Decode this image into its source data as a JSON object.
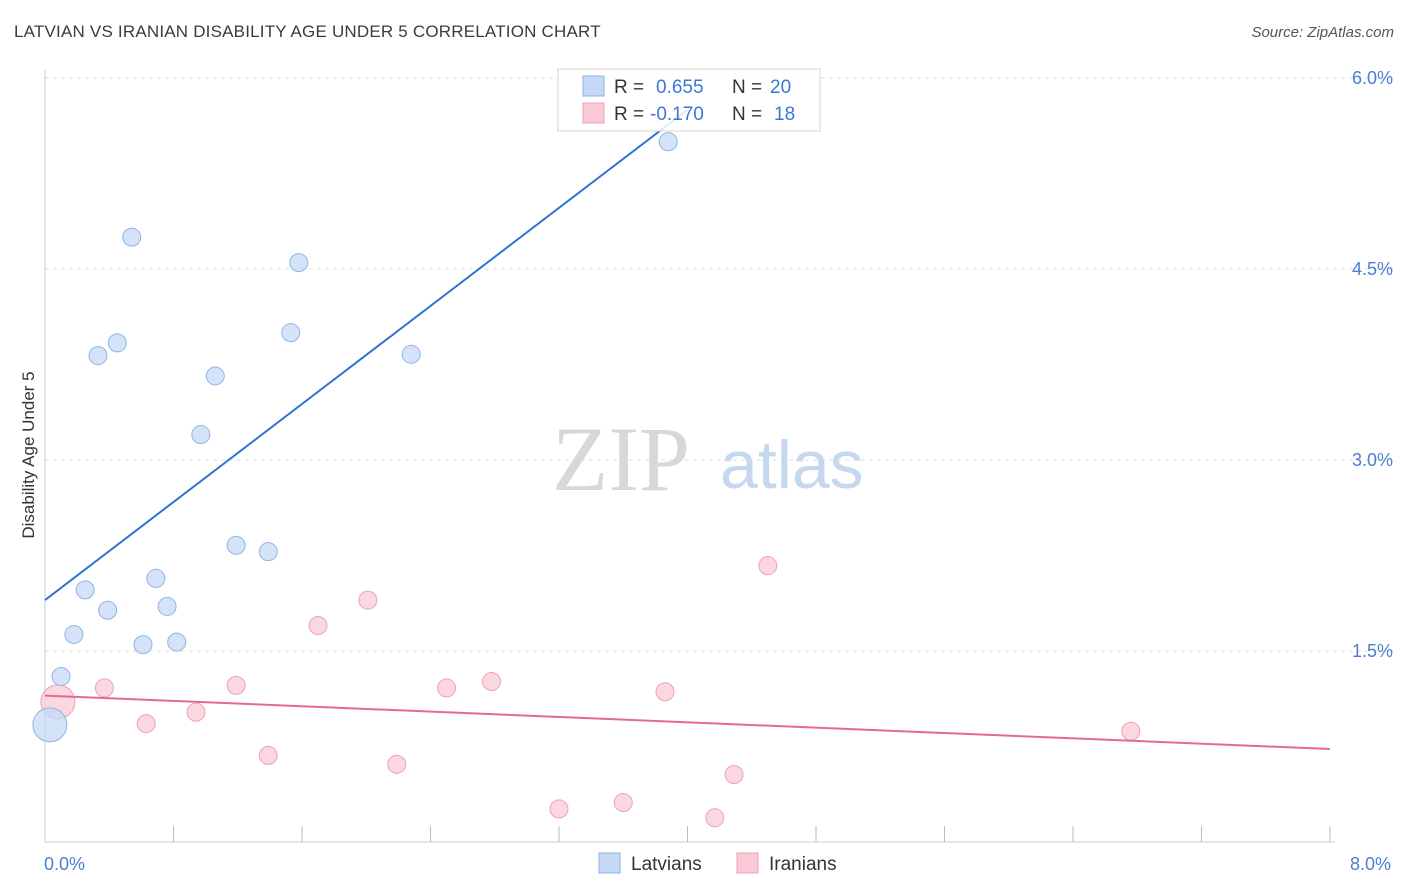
{
  "title": "LATVIAN VS IRANIAN DISABILITY AGE UNDER 5 CORRELATION CHART",
  "source": "Source: ZipAtlas.com",
  "watermark": {
    "zip": "ZIP",
    "atlas": "atlas"
  },
  "legend": {
    "series": [
      {
        "r_label": "R =",
        "r_value": "0.655",
        "n_label": "N =",
        "n_value": "20"
      },
      {
        "r_label": "R =",
        "r_value": "-0.170",
        "n_label": "N =",
        "n_value": "18"
      }
    ]
  },
  "colors": {
    "latvians_fill": "#c5d9f5",
    "latvians_stroke": "#8fb4e8",
    "latvians_line": "#2f74d0",
    "iranians_fill": "#f9c9d6",
    "iranians_stroke": "#f0a0b8",
    "iranians_line": "#e46a93",
    "grid": "#dddddd",
    "tick_text": "#4a7fd1"
  },
  "chart_data": {
    "type": "scatter",
    "title": "LATVIAN VS IRANIAN DISABILITY AGE UNDER 5 CORRELATION CHART",
    "xlabel": "",
    "ylabel": "Disability Age Under 5",
    "xlim": [
      0.0,
      8.0
    ],
    "ylim": [
      0.0,
      6.0
    ],
    "x_tick_labels": [
      "0.0%",
      "8.0%"
    ],
    "y_ticks": [
      1.5,
      3.0,
      4.5,
      6.0
    ],
    "y_tick_labels": [
      "1.5%",
      "3.0%",
      "4.5%",
      "6.0%"
    ],
    "grid": true,
    "series": [
      {
        "name": "Latvians",
        "r": 0.655,
        "n": 20,
        "trend": {
          "x": [
            0.0,
            4.0
          ],
          "y": [
            1.9,
            5.75
          ]
        },
        "points": [
          {
            "x": 0.03,
            "y": 0.92,
            "size": "large"
          },
          {
            "x": 0.1,
            "y": 1.3
          },
          {
            "x": 0.18,
            "y": 1.63
          },
          {
            "x": 0.25,
            "y": 1.98
          },
          {
            "x": 0.33,
            "y": 3.82
          },
          {
            "x": 0.39,
            "y": 1.82
          },
          {
            "x": 0.45,
            "y": 3.92
          },
          {
            "x": 0.54,
            "y": 4.75
          },
          {
            "x": 0.61,
            "y": 1.55
          },
          {
            "x": 0.69,
            "y": 2.07
          },
          {
            "x": 0.76,
            "y": 1.85
          },
          {
            "x": 0.82,
            "y": 1.57
          },
          {
            "x": 0.97,
            "y": 3.2
          },
          {
            "x": 1.06,
            "y": 3.66
          },
          {
            "x": 1.19,
            "y": 2.33
          },
          {
            "x": 1.39,
            "y": 2.28
          },
          {
            "x": 1.53,
            "y": 4.0
          },
          {
            "x": 1.58,
            "y": 4.55
          },
          {
            "x": 2.28,
            "y": 3.83
          },
          {
            "x": 3.88,
            "y": 5.5
          }
        ]
      },
      {
        "name": "Iranians",
        "r": -0.17,
        "n": 18,
        "trend": {
          "x": [
            0.0,
            8.0
          ],
          "y": [
            1.15,
            0.73
          ]
        },
        "points": [
          {
            "x": 0.08,
            "y": 1.1,
            "size": "large"
          },
          {
            "x": 0.37,
            "y": 1.21
          },
          {
            "x": 0.63,
            "y": 0.93
          },
          {
            "x": 0.94,
            "y": 1.02
          },
          {
            "x": 1.19,
            "y": 1.23
          },
          {
            "x": 1.39,
            "y": 0.68
          },
          {
            "x": 1.7,
            "y": 1.7
          },
          {
            "x": 2.01,
            "y": 1.9
          },
          {
            "x": 2.19,
            "y": 0.61
          },
          {
            "x": 2.5,
            "y": 1.21
          },
          {
            "x": 2.78,
            "y": 1.26
          },
          {
            "x": 3.2,
            "y": 0.26
          },
          {
            "x": 3.6,
            "y": 0.31
          },
          {
            "x": 3.86,
            "y": 1.18
          },
          {
            "x": 4.17,
            "y": 0.19
          },
          {
            "x": 4.29,
            "y": 0.53
          },
          {
            "x": 4.5,
            "y": 2.17
          },
          {
            "x": 6.76,
            "y": 0.87
          }
        ]
      }
    ]
  }
}
